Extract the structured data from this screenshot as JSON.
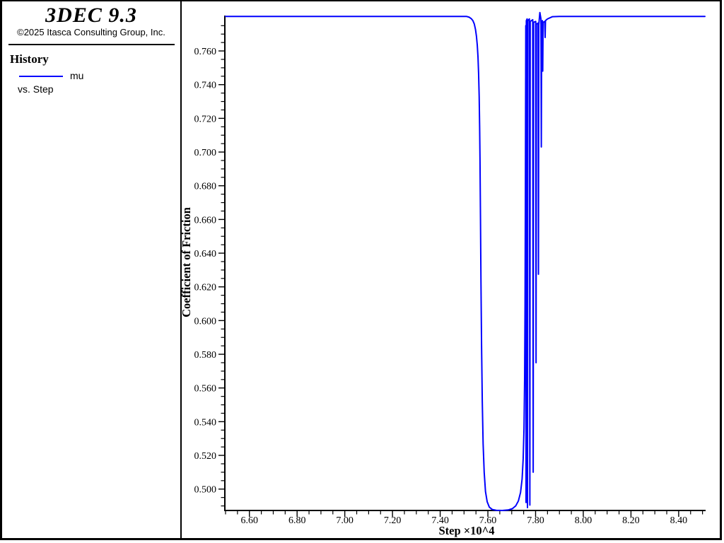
{
  "branding": {
    "app_title": "3DEC 9.3",
    "copyright": "©2025 Itasca Consulting Group, Inc."
  },
  "legend": {
    "heading": "History",
    "series_label": "mu",
    "vs_label": "vs. Step",
    "series_color": "#0000fe"
  },
  "chart_data": {
    "type": "line",
    "title": "",
    "xlabel": "Step ×10^4",
    "ylabel": "Coefficient of Friction",
    "xlim": [
      6.497,
      8.513
    ],
    "ylim": [
      0.4873,
      0.781
    ],
    "grid": false,
    "legend_position": "left-panel",
    "x_major_ticks": [
      6.6,
      6.8,
      7.0,
      7.2,
      7.4,
      7.6,
      7.8,
      8.0,
      8.2,
      8.4
    ],
    "x_tick_labels": [
      "6.60",
      "6.80",
      "7.00",
      "7.20",
      "7.40",
      "7.60",
      "7.80",
      "8.00",
      "8.20",
      "8.40"
    ],
    "x_minor_step": 0.05,
    "y_major_ticks": [
      0.5,
      0.52,
      0.54,
      0.56,
      0.58,
      0.6,
      0.62,
      0.64,
      0.66,
      0.68,
      0.7,
      0.72,
      0.74,
      0.76
    ],
    "y_tick_labels": [
      "0.500",
      "0.520",
      "0.540",
      "0.560",
      "0.580",
      "0.600",
      "0.620",
      "0.640",
      "0.660",
      "0.680",
      "0.700",
      "0.720",
      "0.740",
      "0.760"
    ],
    "y_minor_step": 0.005,
    "series": [
      {
        "name": "mu",
        "color": "#0000fe",
        "points": [
          [
            6.5,
            0.7805
          ],
          [
            7.51,
            0.7805
          ],
          [
            7.522,
            0.78
          ],
          [
            7.53,
            0.7792
          ],
          [
            7.537,
            0.778
          ],
          [
            7.543,
            0.776
          ],
          [
            7.548,
            0.7728
          ],
          [
            7.552,
            0.7688
          ],
          [
            7.5555,
            0.7635
          ],
          [
            7.5585,
            0.7565
          ],
          [
            7.561,
            0.747
          ],
          [
            7.5635,
            0.733
          ],
          [
            7.5655,
            0.714
          ],
          [
            7.567,
            0.695
          ],
          [
            7.569,
            0.66
          ],
          [
            7.571,
            0.623
          ],
          [
            7.5735,
            0.585
          ],
          [
            7.5765,
            0.552
          ],
          [
            7.58,
            0.527
          ],
          [
            7.5845,
            0.51
          ],
          [
            7.59,
            0.4985
          ],
          [
            7.597,
            0.4925
          ],
          [
            7.606,
            0.4893
          ],
          [
            7.618,
            0.4879
          ],
          [
            7.635,
            0.4874
          ],
          [
            7.66,
            0.4873
          ],
          [
            7.685,
            0.4876
          ],
          [
            7.703,
            0.4884
          ],
          [
            7.717,
            0.4901
          ],
          [
            7.728,
            0.493
          ],
          [
            7.737,
            0.498
          ],
          [
            7.7435,
            0.506
          ],
          [
            7.748,
            0.518
          ],
          [
            7.7515,
            0.536
          ],
          [
            7.754,
            0.565
          ],
          [
            7.7558,
            0.61
          ],
          [
            7.7572,
            0.67
          ],
          [
            7.7582,
            0.73
          ],
          [
            7.759,
            0.775
          ],
          [
            7.76,
            0.492
          ],
          [
            7.7612,
            0.778
          ],
          [
            7.7645,
            0.779
          ],
          [
            7.766,
            0.489
          ],
          [
            7.7672,
            0.778
          ],
          [
            7.774,
            0.779
          ],
          [
            7.776,
            0.4905
          ],
          [
            7.7775,
            0.7775
          ],
          [
            7.788,
            0.7785
          ],
          [
            7.79,
            0.51
          ],
          [
            7.7915,
            0.777
          ],
          [
            7.8005,
            0.7775
          ],
          [
            7.802,
            0.575
          ],
          [
            7.8035,
            0.776
          ],
          [
            7.8105,
            0.7765
          ],
          [
            7.812,
            0.6275
          ],
          [
            7.8135,
            0.7755
          ],
          [
            7.818,
            0.7828
          ],
          [
            7.8225,
            0.779
          ],
          [
            7.824,
            0.703
          ],
          [
            7.8255,
            0.777
          ],
          [
            7.8285,
            0.778
          ],
          [
            7.83,
            0.748
          ],
          [
            7.8315,
            0.777
          ],
          [
            7.8385,
            0.7775
          ],
          [
            7.84,
            0.768
          ],
          [
            7.8415,
            0.778
          ],
          [
            7.85,
            0.779
          ],
          [
            7.87,
            0.7803
          ],
          [
            7.9,
            0.7805
          ],
          [
            8.51,
            0.7805
          ]
        ]
      }
    ]
  }
}
